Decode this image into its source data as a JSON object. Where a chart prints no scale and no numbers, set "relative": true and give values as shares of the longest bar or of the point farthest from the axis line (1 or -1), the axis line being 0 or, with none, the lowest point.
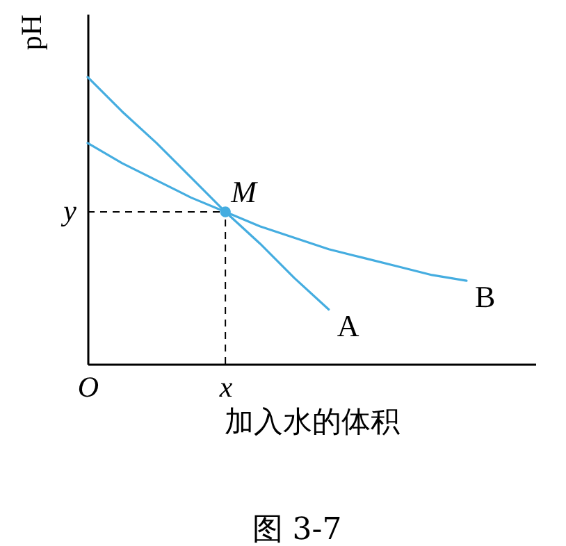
{
  "chart_data": {
    "type": "line",
    "relative": true,
    "xlabel": "加入水的体积",
    "ylabel": "pH",
    "categories": [
      "O",
      null,
      null,
      null,
      "x",
      null,
      null,
      null,
      null,
      null,
      null,
      null,
      null,
      null
    ],
    "series": [
      {
        "name": "A",
        "color": "#45ade0",
        "values": [
          1,
          0.88,
          0.77,
          0.65,
          0.53,
          0.42,
          0.3,
          0.19,
          null,
          null,
          null,
          null,
          null,
          null
        ]
      },
      {
        "name": "B",
        "color": "#45ade0",
        "values": [
          0.77,
          0.7,
          0.64,
          0.58,
          0.53,
          0.48,
          0.44,
          0.4,
          0.37,
          0.34,
          0.31,
          0.29,
          null,
          null
        ]
      }
    ],
    "ref_lines": [
      {
        "axis": "y",
        "value": 0.53,
        "label": "y",
        "line_style": "dashed"
      },
      {
        "axis": "x",
        "value": "x",
        "line_style": "dashed"
      }
    ],
    "line_style": "solid",
    "annotations": [
      {
        "text": "M",
        "x": "x",
        "y": 0.53
      },
      "图 3-7"
    ]
  }
}
